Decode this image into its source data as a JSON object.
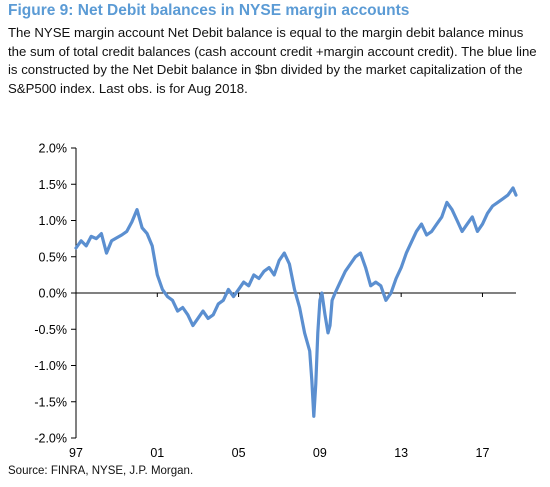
{
  "figure": {
    "title": "Figure 9: Net Debit balances in NYSE margin accounts",
    "description": "The NYSE margin account Net Debit balance is equal to the margin debit balance minus the sum of total credit balances (cash account credit +margin account credit). The blue line is constructed by the Net Debit balance in $bn divided by the market capitalization of the S&P500 index. Last obs. is for Aug 2018.",
    "source": "Source: FINRA, NYSE, J.P. Morgan."
  },
  "colors": {
    "title": "#5b9bd5",
    "line": "#5b8fd0",
    "axis": "#000000"
  },
  "chart_data": {
    "type": "line",
    "title": "Figure 9: Net Debit balances in NYSE margin accounts",
    "xlabel": "",
    "ylabel": "",
    "xlim": [
      1997.0,
      2018.65
    ],
    "ylim": [
      -2.0,
      2.0
    ],
    "x_ticks": [
      1997,
      2001,
      2005,
      2009,
      2013,
      2017
    ],
    "x_tick_labels": [
      "97",
      "01",
      "05",
      "09",
      "13",
      "17"
    ],
    "y_ticks": [
      2.0,
      1.5,
      1.0,
      0.5,
      0.0,
      -0.5,
      -1.0,
      -1.5,
      -2.0
    ],
    "y_tick_labels": [
      "2.0%",
      "1.5%",
      "1.0%",
      "0.5%",
      "0.0%",
      "-0.5%",
      "-1.0%",
      "-1.5%",
      "-2.0%"
    ],
    "grid": false,
    "series": [
      {
        "x": [
          1997.0,
          1997.25,
          1997.5,
          1997.75,
          1998.0,
          1998.25,
          1998.5,
          1998.75,
          1999.0,
          1999.25,
          1999.5,
          1999.75,
          2000.0,
          2000.25,
          2000.5,
          2000.75,
          2001.0,
          2001.25,
          2001.5,
          2001.75,
          2002.0,
          2002.25,
          2002.5,
          2002.75,
          2003.0,
          2003.25,
          2003.5,
          2003.75,
          2004.0,
          2004.25,
          2004.5,
          2004.75,
          2005.0,
          2005.25,
          2005.5,
          2005.75,
          2006.0,
          2006.25,
          2006.5,
          2006.75,
          2007.0,
          2007.25,
          2007.5,
          2007.75,
          2008.0,
          2008.25,
          2008.5,
          2008.6,
          2008.7,
          2008.8,
          2008.9,
          2009.0,
          2009.1,
          2009.25,
          2009.4,
          2009.5,
          2009.6,
          2009.75,
          2010.0,
          2010.25,
          2010.5,
          2010.75,
          2011.0,
          2011.25,
          2011.5,
          2011.75,
          2012.0,
          2012.25,
          2012.5,
          2012.75,
          2013.0,
          2013.25,
          2013.5,
          2013.75,
          2014.0,
          2014.25,
          2014.5,
          2014.75,
          2015.0,
          2015.25,
          2015.5,
          2015.75,
          2016.0,
          2016.25,
          2016.5,
          2016.75,
          2017.0,
          2017.25,
          2017.5,
          2017.75,
          2018.0,
          2018.25,
          2018.5,
          2018.65
        ],
        "y": [
          0.62,
          0.72,
          0.65,
          0.78,
          0.75,
          0.82,
          0.55,
          0.72,
          0.76,
          0.8,
          0.85,
          0.98,
          1.15,
          0.9,
          0.82,
          0.65,
          0.25,
          0.05,
          -0.05,
          -0.1,
          -0.25,
          -0.2,
          -0.3,
          -0.45,
          -0.35,
          -0.25,
          -0.35,
          -0.3,
          -0.15,
          -0.1,
          0.05,
          -0.05,
          0.05,
          0.15,
          0.1,
          0.25,
          0.2,
          0.3,
          0.35,
          0.25,
          0.45,
          0.55,
          0.4,
          0.05,
          -0.2,
          -0.55,
          -0.8,
          -1.2,
          -1.7,
          -1.25,
          -0.55,
          -0.1,
          0.0,
          -0.3,
          -0.55,
          -0.45,
          -0.1,
          0.0,
          0.15,
          0.3,
          0.4,
          0.5,
          0.55,
          0.35,
          0.1,
          0.15,
          0.1,
          -0.1,
          0.0,
          0.2,
          0.35,
          0.55,
          0.7,
          0.85,
          0.95,
          0.8,
          0.85,
          0.95,
          1.05,
          1.25,
          1.15,
          1.0,
          0.85,
          0.95,
          1.05,
          0.85,
          0.95,
          1.1,
          1.2,
          1.25,
          1.3,
          1.35,
          1.45,
          1.35
        ]
      }
    ]
  }
}
